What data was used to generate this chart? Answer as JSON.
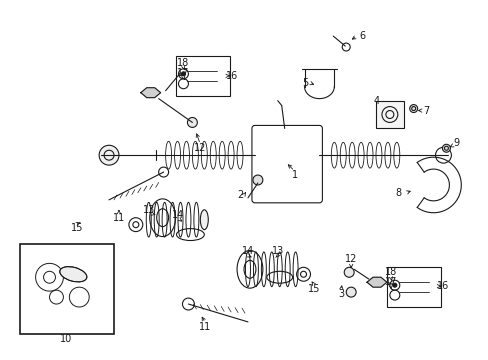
{
  "bg_color": "#ffffff",
  "line_color": "#1a1a1a",
  "fig_width": 4.89,
  "fig_height": 3.6,
  "dpi": 100,
  "coord_system": "pixels_489x360"
}
